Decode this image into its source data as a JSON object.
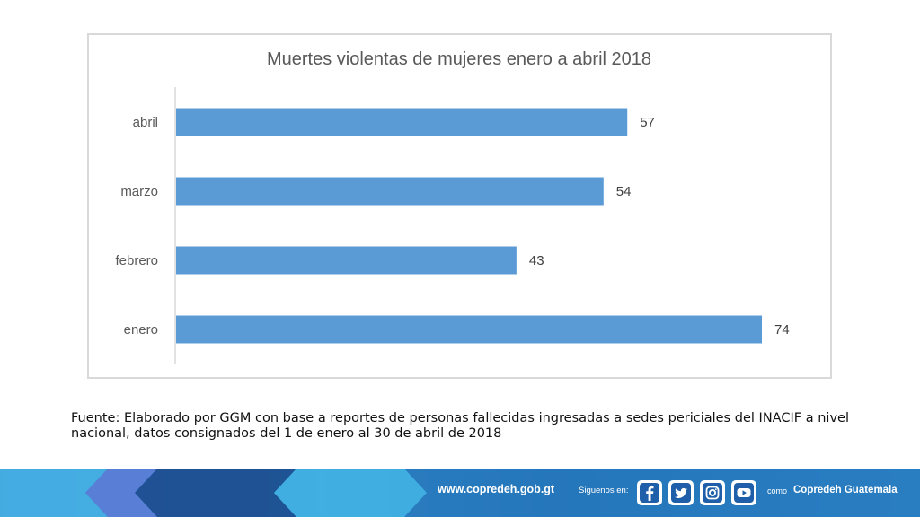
{
  "chart_data": {
    "type": "bar",
    "orientation": "horizontal",
    "title": "Muertes violentas de mujeres enero a abril 2018",
    "categories": [
      "abril",
      "marzo",
      "febrero",
      "enero"
    ],
    "values": [
      57,
      54,
      43,
      74
    ],
    "value_labels": [
      "57",
      "54",
      "43",
      "74"
    ],
    "xlim": [
      0,
      74
    ],
    "grid": false,
    "legend": "none",
    "bar_color": "#5b9bd5"
  },
  "source_note": "Fuente: Elaborado por GGM con base a reportes de personas fallecidas ingresadas a sedes periciales del INACIF a nivel nacional, datos consignados del 1 de enero al 30 de abril de 2018",
  "footer": {
    "website": "www.copredeh.gob.gt",
    "follow_label": "Siguenos en:",
    "social_icons": [
      "facebook-icon",
      "twitter-icon",
      "instagram-icon",
      "youtube-icon"
    ],
    "como_label": "como",
    "handle": "Copredeh Guatemala",
    "colors": {
      "dark": "#1d4c8e",
      "mid": "#2a73b8",
      "light": "#46b6e6",
      "accent": "#5c7fd6"
    }
  }
}
